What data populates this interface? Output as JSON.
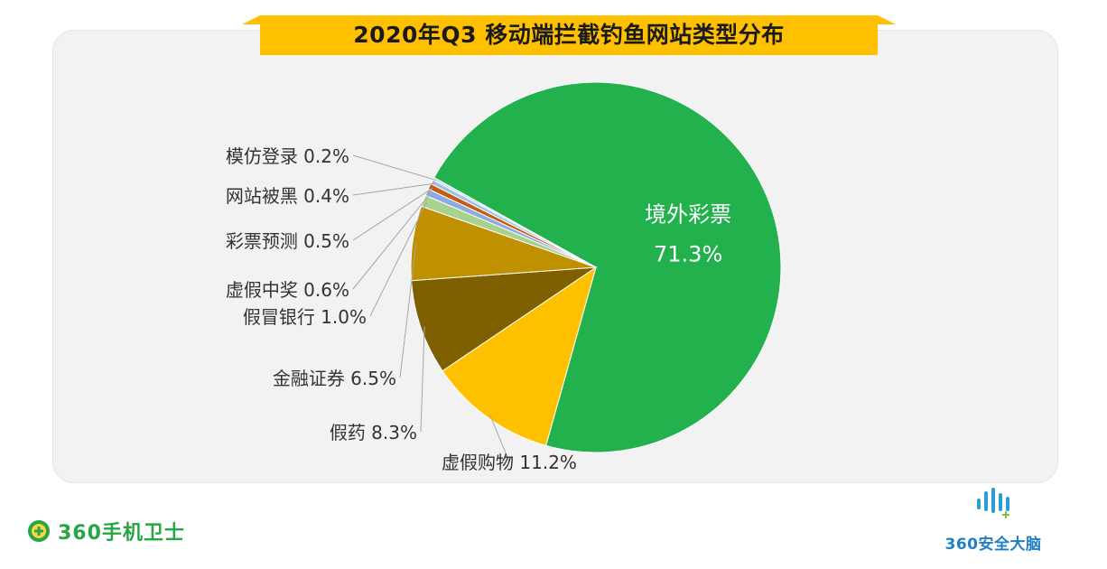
{
  "title": "2020年Q3 移动端拦截钓鱼网站类型分布",
  "chart_data": {
    "type": "pie",
    "title": "2020年Q3 移动端拦截钓鱼网站类型分布",
    "slices": [
      {
        "label": "境外彩票",
        "value": 71.3,
        "display": "71.3%",
        "color": "#22b14c"
      },
      {
        "label": "虚假购物",
        "value": 11.2,
        "display": "11.2%",
        "color": "#ffc000"
      },
      {
        "label": "假药",
        "value": 8.3,
        "display": "8.3%",
        "color": "#7f6000"
      },
      {
        "label": "金融证券",
        "value": 6.5,
        "display": "6.5%",
        "color": "#bf9000"
      },
      {
        "label": "假冒银行",
        "value": 1.0,
        "display": "1.0%",
        "color": "#a9d18e"
      },
      {
        "label": "虚假中奖",
        "value": 0.6,
        "display": "0.6%",
        "color": "#8faadc"
      },
      {
        "label": "彩票预测",
        "value": 0.5,
        "display": "0.5%",
        "color": "#c55a11"
      },
      {
        "label": "网站被黑",
        "value": 0.4,
        "display": "0.4%",
        "color": "#9dc3e6"
      },
      {
        "label": "模仿登录",
        "value": 0.2,
        "display": "0.2%",
        "color": "#c9dff2"
      }
    ],
    "legend": "none",
    "label_style": "leader-lines"
  },
  "logos": {
    "left_text": "360手机卫士",
    "right_text": "360安全大脑"
  },
  "colors": {
    "banner": "#ffc000",
    "brand_green": "#27a644",
    "brand_blue": "#1f7fc4"
  }
}
